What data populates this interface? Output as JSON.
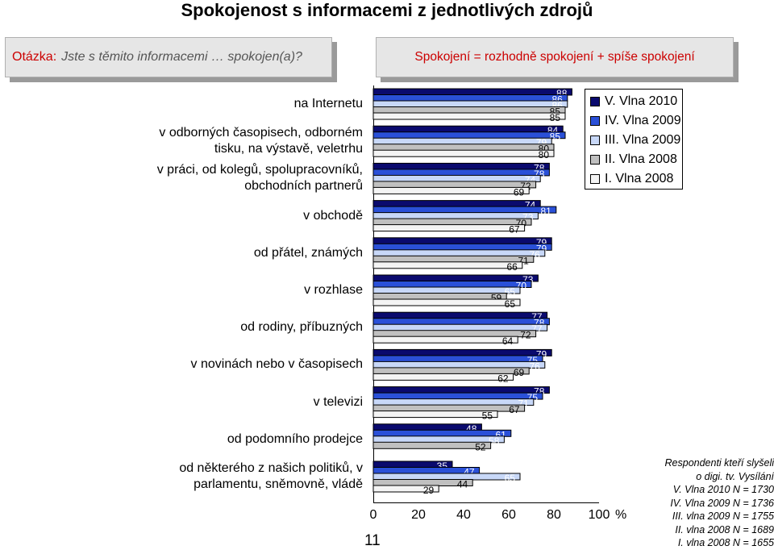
{
  "page_title": "Spokojenost s informacemi z jednotlivých zdrojů",
  "question": {
    "label": "Otázka:",
    "text": "Jste s těmito informacemi … spokojen(a)?"
  },
  "definition": "Spokojení = rozhodně spokojení + spíše spokojení",
  "slide_number": "11",
  "colors": {
    "accent_red": "#cc0000"
  },
  "chart_data": {
    "type": "bar",
    "orientation": "horizontal",
    "categories": [
      "na Internetu",
      "v odborných časopisech, odborném tisku, na výstavě, veletrhu",
      "v práci, od kolegů, spolupracovníků, obchodních partnerů",
      "v obchodě",
      "od přátel, známých",
      "v rozhlase",
      "od rodiny, příbuzných",
      "v novinách nebo v časopisech",
      "v televizi",
      "od podomního prodejce",
      "od některého z našich politiků, v parlamentu, sněmovně, vládě"
    ],
    "series": [
      {
        "name": "V. Vlna 2010",
        "color": "#0a0a6e",
        "label_color": "#ffffff",
        "values": [
          88,
          84,
          78,
          74,
          79,
          73,
          77,
          79,
          78,
          48,
          35
        ]
      },
      {
        "name": "IV. Vlna 2009",
        "color": "#2a50d8",
        "label_color": "#ffffff",
        "values": [
          86,
          85,
          78,
          81,
          79,
          70,
          78,
          75,
          75,
          61,
          47
        ]
      },
      {
        "name": "III. Vlna 2009",
        "color": "#c8d8f8",
        "label_color": "#ffffff",
        "values": [
          86,
          79,
          74,
          73,
          76,
          65,
          77,
          76,
          71,
          58,
          65
        ]
      },
      {
        "name": "II. Vlna 2008",
        "color": "#c0c0c0",
        "label_color": "#000000",
        "values": [
          85,
          80,
          72,
          70,
          71,
          59,
          72,
          69,
          67,
          52,
          44
        ]
      },
      {
        "name": "I. Vlna 2008",
        "color": "#f4f4f4",
        "label_color": "#000000",
        "values": [
          85,
          80,
          69,
          67,
          66,
          65,
          64,
          62,
          55,
          null,
          29
        ]
      }
    ],
    "xlim": [
      0,
      100
    ],
    "xticks": [
      "0",
      "20",
      "40",
      "60",
      "80",
      "100"
    ],
    "unit": "%",
    "grid": false,
    "legend_position": "top-right"
  },
  "notes": [
    "Respondenti kteří slyšeli",
    "o digi. tv. Vysílání",
    "V. Vlna 2010 N = 1730",
    "IV. Vlna 2009 N = 1736",
    "III. vlna 2009 N = 1755",
    "II. vlna 2008 N = 1689",
    "I. vlna 2008 N = 1655"
  ]
}
